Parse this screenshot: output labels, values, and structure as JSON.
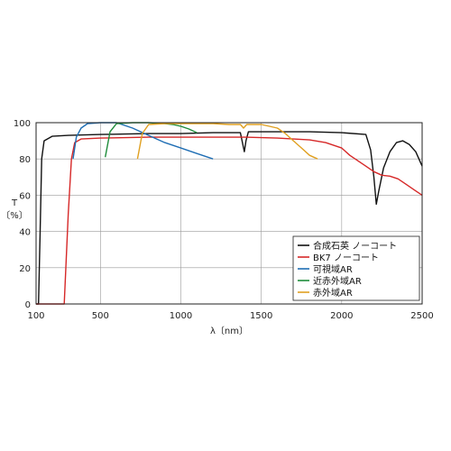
{
  "chart_data": {
    "type": "line",
    "xlabel": "λ〔nm〕",
    "ylabel_top": "T",
    "ylabel_bottom": "〔%〕",
    "xlim": [
      100,
      2500
    ],
    "ylim": [
      0,
      100
    ],
    "xticks": [
      "100",
      "500",
      "1000",
      "1500",
      "2000",
      "2500"
    ],
    "xtick_values": [
      100,
      500,
      1000,
      1500,
      2000,
      2500
    ],
    "yticks": [
      "0",
      "20",
      "40",
      "60",
      "80",
      "100"
    ],
    "ytick_values": [
      0,
      20,
      40,
      60,
      80,
      100
    ],
    "grid": true,
    "legend_position": "bottom-right",
    "series": [
      {
        "name": "合成石英 ノーコート",
        "color": "#111111",
        "points": [
          [
            100,
            0
          ],
          [
            115,
            0
          ],
          [
            125,
            40
          ],
          [
            135,
            80
          ],
          [
            150,
            90
          ],
          [
            200,
            92.5
          ],
          [
            300,
            93
          ],
          [
            500,
            93.5
          ],
          [
            800,
            94
          ],
          [
            1000,
            94
          ],
          [
            1200,
            94.5
          ],
          [
            1370,
            94.5
          ],
          [
            1385,
            88
          ],
          [
            1395,
            84
          ],
          [
            1405,
            90
          ],
          [
            1420,
            95
          ],
          [
            1600,
            95
          ],
          [
            1800,
            95
          ],
          [
            2000,
            94.5
          ],
          [
            2150,
            93.5
          ],
          [
            2180,
            85
          ],
          [
            2200,
            70
          ],
          [
            2215,
            55
          ],
          [
            2230,
            62
          ],
          [
            2260,
            75
          ],
          [
            2300,
            84
          ],
          [
            2340,
            89
          ],
          [
            2380,
            90
          ],
          [
            2420,
            88
          ],
          [
            2460,
            84
          ],
          [
            2500,
            76
          ]
        ]
      },
      {
        "name": "BK7 ノーコート",
        "color": "#d62828",
        "points": [
          [
            100,
            0
          ],
          [
            260,
            0
          ],
          [
            275,
            0
          ],
          [
            285,
            20
          ],
          [
            300,
            50
          ],
          [
            320,
            80
          ],
          [
            340,
            89
          ],
          [
            380,
            91
          ],
          [
            500,
            91.5
          ],
          [
            800,
            92
          ],
          [
            1000,
            92
          ],
          [
            1200,
            92
          ],
          [
            1400,
            92
          ],
          [
            1600,
            91.5
          ],
          [
            1800,
            90.5
          ],
          [
            1900,
            89
          ],
          [
            2000,
            86
          ],
          [
            2050,
            82
          ],
          [
            2100,
            79
          ],
          [
            2150,
            76
          ],
          [
            2200,
            73
          ],
          [
            2250,
            71
          ],
          [
            2300,
            70.5
          ],
          [
            2350,
            69
          ],
          [
            2400,
            66
          ],
          [
            2450,
            63
          ],
          [
            2500,
            60
          ]
        ]
      },
      {
        "name": "可視域AR",
        "color": "#1f6eb4",
        "points": [
          [
            330,
            80
          ],
          [
            350,
            92
          ],
          [
            380,
            97
          ],
          [
            420,
            99.5
          ],
          [
            500,
            100
          ],
          [
            600,
            100
          ],
          [
            700,
            97
          ],
          [
            800,
            93
          ],
          [
            900,
            89
          ],
          [
            1000,
            86
          ],
          [
            1100,
            83
          ],
          [
            1200,
            80
          ]
        ]
      },
      {
        "name": "近赤外域AR",
        "color": "#1e8c3a",
        "points": [
          [
            530,
            81
          ],
          [
            560,
            95
          ],
          [
            600,
            99.5
          ],
          [
            700,
            100
          ],
          [
            800,
            100
          ],
          [
            900,
            99.5
          ],
          [
            950,
            99
          ],
          [
            1000,
            98
          ],
          [
            1050,
            96.5
          ],
          [
            1100,
            94.5
          ]
        ]
      },
      {
        "name": "赤外域AR",
        "color": "#e0a020",
        "points": [
          [
            730,
            80
          ],
          [
            760,
            94
          ],
          [
            800,
            99
          ],
          [
            900,
            99.5
          ],
          [
            1000,
            99.5
          ],
          [
            1100,
            99.5
          ],
          [
            1200,
            99.5
          ],
          [
            1300,
            99
          ],
          [
            1370,
            99
          ],
          [
            1390,
            97
          ],
          [
            1410,
            99
          ],
          [
            1500,
            99
          ],
          [
            1550,
            98
          ],
          [
            1600,
            97
          ],
          [
            1650,
            94
          ],
          [
            1700,
            90
          ],
          [
            1750,
            86
          ],
          [
            1800,
            82
          ],
          [
            1850,
            80
          ]
        ]
      }
    ]
  }
}
